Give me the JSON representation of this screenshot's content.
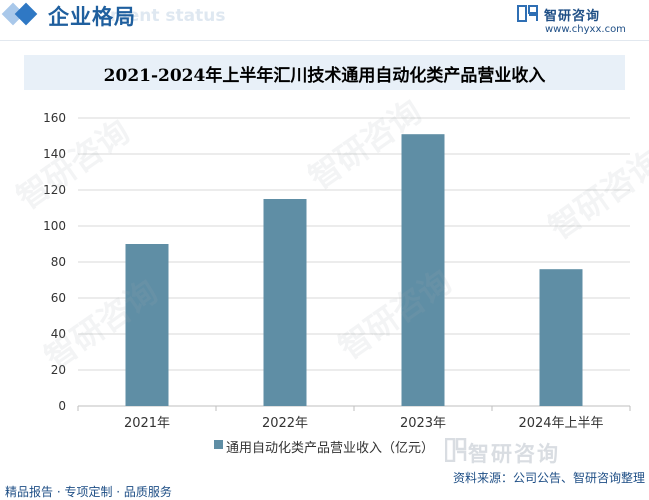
{
  "header": {
    "title": "企业格局",
    "subtitle": "ment status",
    "brand_name": "智研咨询",
    "brand_url": "www.chyxx.com"
  },
  "chart_data": {
    "type": "bar",
    "title": "2021-2024年上半年汇川技术通用自动化类产品营业收入",
    "categories": [
      "2021年",
      "2022年",
      "2023年",
      "2024年上半年"
    ],
    "series": [
      {
        "name": "通用自动化类产品营业收入（亿元）",
        "values": [
          90,
          115,
          151,
          76
        ],
        "color": "#5f8ea5"
      }
    ],
    "ylim": [
      0,
      160
    ],
    "yticks": [
      0,
      20,
      40,
      60,
      80,
      100,
      120,
      140,
      160
    ],
    "xlabel": "",
    "ylabel": "",
    "legend": "bottom"
  },
  "footer": {
    "left": "精品报告 · 专项定制 · 品质服务",
    "source": "资料来源：公司公告、智研咨询整理",
    "brand": "智研咨询"
  },
  "watermark": "智研咨询"
}
